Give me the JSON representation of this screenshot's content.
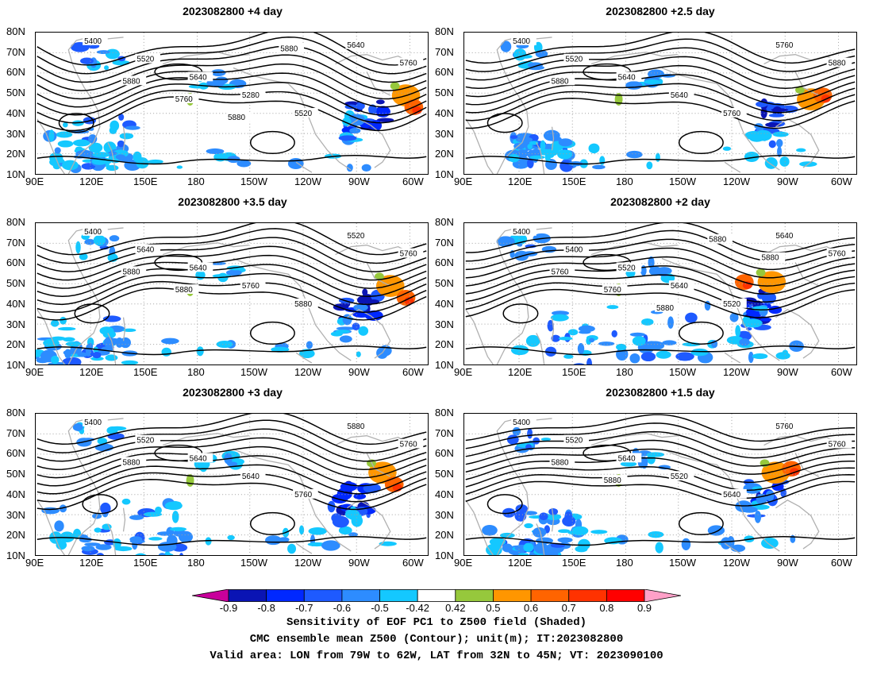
{
  "panels": [
    {
      "title": "2023082800 +4 day"
    },
    {
      "title": "2023082800 +2.5 day"
    },
    {
      "title": "2023082800 +3.5 day"
    },
    {
      "title": "2023082800 +2 day"
    },
    {
      "title": "2023082800 +3 day"
    },
    {
      "title": "2023082800 +1.5 day"
    }
  ],
  "axes": {
    "lat_ticks": [
      "80N",
      "70N",
      "60N",
      "50N",
      "40N",
      "30N",
      "20N",
      "10N"
    ],
    "lon_ticks": [
      "90E",
      "120E",
      "150E",
      "180",
      "150W",
      "120W",
      "90W",
      "60W"
    ]
  },
  "contour_labels": {
    "p0": [
      "5400",
      "5520",
      "5640",
      "5280",
      "5520",
      "5640",
      "5760",
      "5880",
      "5760",
      "5880",
      "5880"
    ],
    "p1": [
      "5400",
      "5520",
      "5640",
      "5640",
      "5760",
      "5760",
      "5880",
      "5880"
    ],
    "p2": [
      "5400",
      "5640",
      "5640",
      "5760",
      "5880",
      "5520",
      "5760",
      "5880",
      "5880"
    ],
    "p3": [
      "5400",
      "5400",
      "5520",
      "5640",
      "5520",
      "5640",
      "5760",
      "5760",
      "5760",
      "5880",
      "5880",
      "5880"
    ],
    "p4": [
      "5400",
      "5520",
      "5640",
      "5640",
      "5760",
      "5880",
      "5760",
      "5880"
    ],
    "p5": [
      "5400",
      "5520",
      "5640",
      "5520",
      "5640",
      "5760",
      "5760",
      "5880",
      "5880"
    ]
  },
  "colorbar": {
    "labels": [
      "-0.9",
      "-0.8",
      "-0.7",
      "-0.6",
      "-0.5",
      "-0.42",
      "0.42",
      "0.5",
      "0.6",
      "0.7",
      "0.8",
      "0.9"
    ],
    "colors": [
      "#0a14b4",
      "#0028ff",
      "#1e5aff",
      "#2d8cff",
      "#14c8ff",
      "#ffffff",
      "#96c83c",
      "#ff9600",
      "#ff6400",
      "#ff3200",
      "#ff0000"
    ],
    "end_low": "#c8009b",
    "end_high": "#ffa0c8"
  },
  "caption": {
    "line1": "Sensitivity of EOF PC1 to Z500 field (Shaded)",
    "line2": "CMC ensemble mean Z500 (Contour); unit(m); IT:2023082800",
    "line3": "Valid area: LON from 79W to 62W, LAT from 32N to 45N; VT: 2023090100"
  }
}
